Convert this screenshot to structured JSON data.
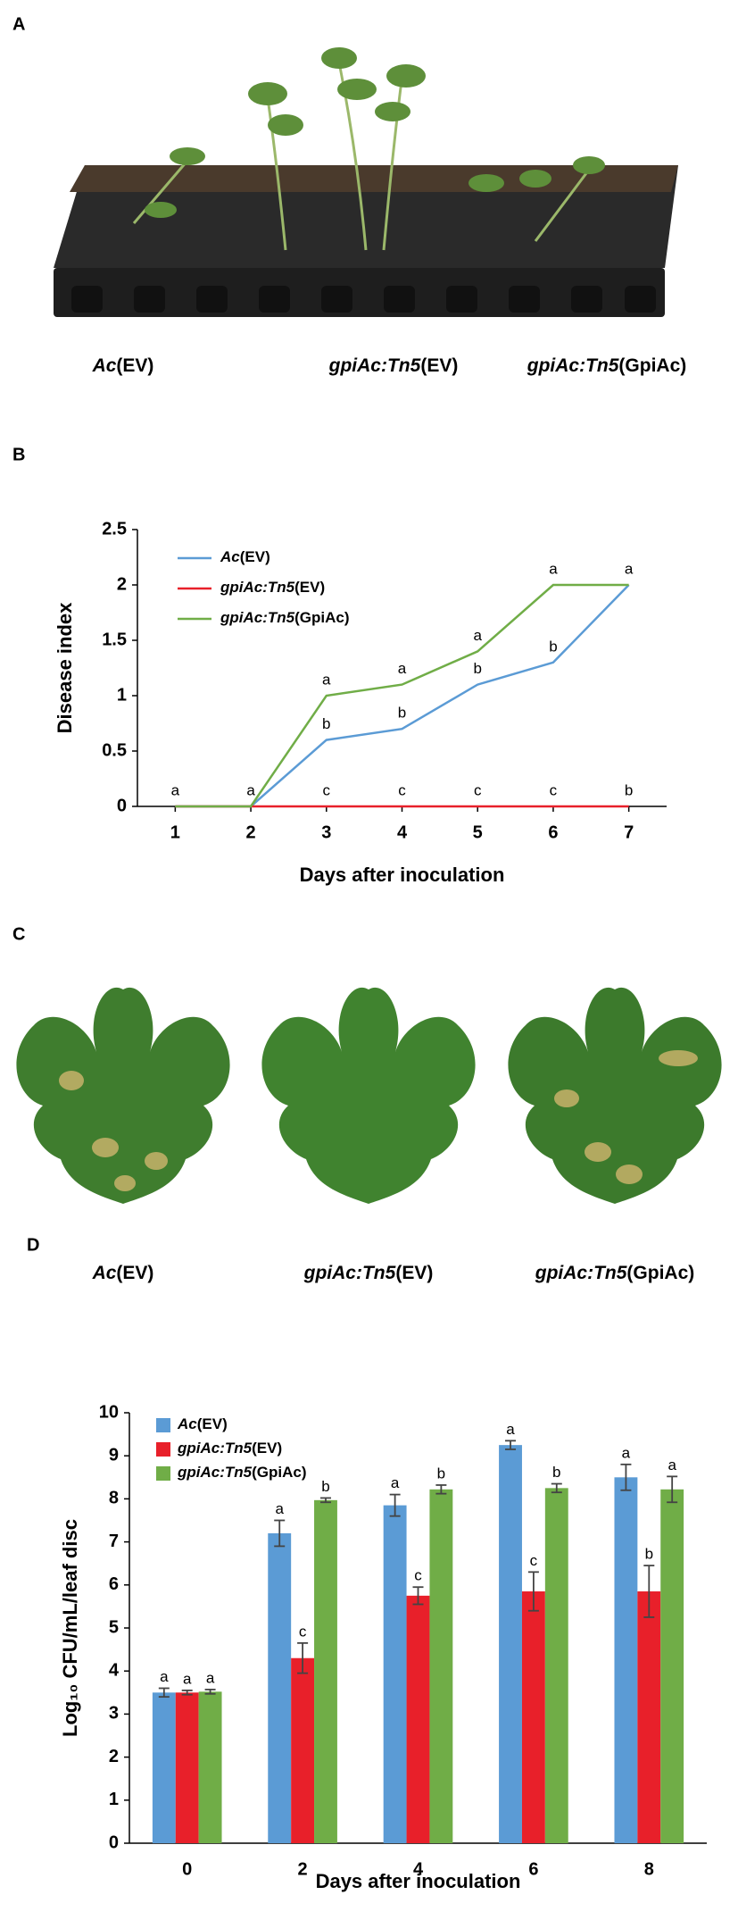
{
  "panel_labels": [
    "A",
    "B",
    "C",
    "D"
  ],
  "photo_a": {
    "labels": [
      "Ac(EV)",
      "gpiAc:Tn5(EV)",
      "gpiAc:Tn5(GpiAc)"
    ]
  },
  "photo_c": {
    "labels": [
      "Ac(EV)",
      "gpiAc:Tn5(EV)",
      "gpiAc:Tn5(GpiAc)"
    ]
  },
  "chart_data": [
    {
      "type": "line",
      "x_label": "Days after inoculation",
      "y_label": "Disease index",
      "x": [
        1,
        2,
        3,
        4,
        5,
        6,
        7
      ],
      "xlim": [
        0.5,
        7.5
      ],
      "xticks": [
        1,
        2,
        3,
        4,
        5,
        6,
        7
      ],
      "ylim": [
        0,
        2.5
      ],
      "yticks": [
        0,
        0.5,
        1,
        1.5,
        2,
        2.5
      ],
      "grid": false,
      "legend": "upper left",
      "series": [
        {
          "name": "Ac(EV)",
          "color": "#5b9bd5",
          "values": [
            0,
            0,
            0.6,
            0.7,
            1.1,
            1.3,
            2
          ],
          "letters": [
            null,
            null,
            "b",
            "b",
            "b",
            "b",
            null
          ]
        },
        {
          "name": "gpiAc:Tn5(EV)",
          "color": "#e8202a",
          "values": [
            0,
            0,
            0,
            0,
            0,
            0,
            0
          ],
          "letters": [
            "a",
            "a",
            "c",
            "c",
            "c",
            "c",
            "b"
          ]
        },
        {
          "name": "gpiAc:Tn5(GpiAc)",
          "color": "#70ad47",
          "values": [
            0,
            0,
            1,
            1.1,
            1.4,
            2,
            2
          ],
          "letters": [
            null,
            null,
            "a",
            "a",
            "a",
            "a",
            "a"
          ]
        }
      ]
    },
    {
      "type": "bar",
      "x_label": "Days after inoculation",
      "y_label": "Log₁₀ CFU/mL/leaf disc",
      "categories": [
        "0",
        "2",
        "4",
        "6",
        "8"
      ],
      "ylim": [
        0,
        10
      ],
      "yticks": [
        0,
        1,
        2,
        3,
        4,
        5,
        6,
        7,
        8,
        9,
        10
      ],
      "grid": false,
      "legend": "upper left",
      "series": [
        {
          "name": "Ac(EV)",
          "color": "#5b9bd5",
          "values": [
            3.5,
            7.2,
            7.85,
            9.25,
            8.5
          ],
          "errors": [
            0.1,
            0.3,
            0.25,
            0.1,
            0.3
          ],
          "letters": [
            "a",
            "a",
            "a",
            "a",
            "a"
          ]
        },
        {
          "name": "gpiAc:Tn5(EV)",
          "color": "#e8202a",
          "values": [
            3.5,
            4.3,
            5.75,
            5.85,
            5.85
          ],
          "errors": [
            0.05,
            0.35,
            0.2,
            0.45,
            0.6
          ],
          "letters": [
            "a",
            "c",
            "c",
            "c",
            "b"
          ]
        },
        {
          "name": "gpiAc:Tn5(GpiAc)",
          "color": "#70ad47",
          "values": [
            3.52,
            7.97,
            8.22,
            8.25,
            8.22
          ],
          "errors": [
            0.05,
            0.05,
            0.1,
            0.1,
            0.3
          ],
          "letters": [
            "a",
            "b",
            "b",
            "b",
            "a"
          ]
        }
      ]
    }
  ]
}
